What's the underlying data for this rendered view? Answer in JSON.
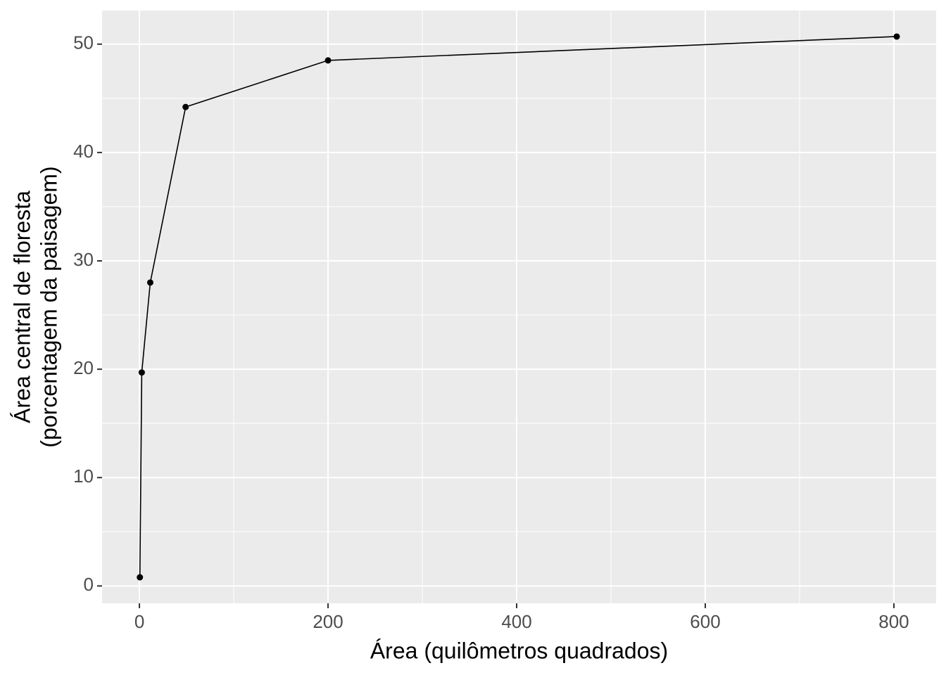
{
  "chart_data": {
    "type": "line",
    "xlabel": "Área (quilômetros quadrados)",
    "ylabel": [
      "Área central de floresta",
      "(porcentagem da paisagem)"
    ],
    "x": [
      0.5,
      2.5,
      11.5,
      49,
      200,
      803
    ],
    "series": [
      {
        "color": "#000000",
        "values": [
          0.8,
          19.7,
          28,
          44.2,
          48.5,
          50.7
        ]
      }
    ],
    "xlim": [
      -39.6,
      844.8
    ],
    "ylim": [
      -1.6,
      53.1
    ],
    "xticks": [
      0,
      200,
      400,
      600,
      800
    ],
    "yticks": [
      0,
      10,
      20,
      30,
      40,
      50
    ],
    "grid": true,
    "panel_color": "#ebebeb"
  }
}
